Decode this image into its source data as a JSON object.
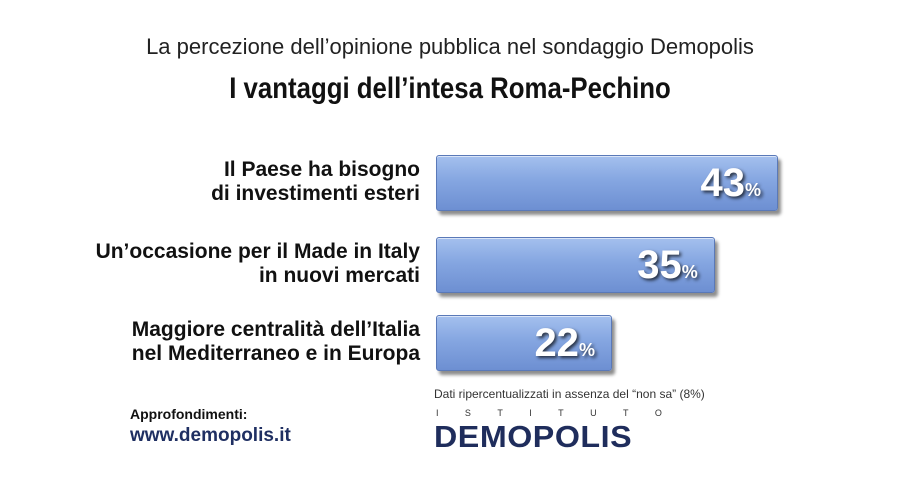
{
  "header": {
    "subtitle": "La percezione dell’opinione pubblica nel sondaggio Demopolis",
    "title": "I vantaggi dell’intesa Roma-Pechino"
  },
  "chart_data": {
    "type": "bar",
    "orientation": "horizontal",
    "categories": [
      "Il Paese ha bisogno\ndi investimenti esteri",
      "Un’occasione per il Made in Italy\nin nuovi mercati",
      "Maggiore centralità dell’Italia\nnel Mediterraneo e in Europa"
    ],
    "values": [
      43,
      35,
      22
    ],
    "value_suffix": "%",
    "title": "I vantaggi dell’intesa Roma-Pechino",
    "subtitle": "La percezione dell’opinione pubblica nel sondaggio Demopolis",
    "xlim": [
      0,
      43
    ],
    "grid": false,
    "bar_color": "#85a6e1"
  },
  "footer": {
    "note": "Dati ripercentualizzati in assenza del “non sa” (8%)",
    "link_label": "Approfondimenti:",
    "link": "www.demopolis.it",
    "logo_top": [
      "I",
      "S",
      "T",
      "I",
      "T",
      "U",
      "T",
      "O"
    ],
    "logo_main": "DEMOPOLIS"
  }
}
